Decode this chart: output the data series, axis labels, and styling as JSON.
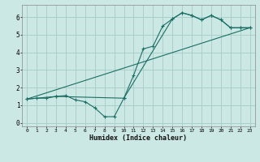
{
  "xlabel": "Humidex (Indice chaleur)",
  "bg_color": "#cce8e4",
  "grid_color": "#aad0cc",
  "line_color": "#1a6e64",
  "xlim": [
    -0.5,
    23.5
  ],
  "ylim": [
    -0.2,
    6.7
  ],
  "xticks": [
    0,
    1,
    2,
    3,
    4,
    5,
    6,
    7,
    8,
    9,
    10,
    11,
    12,
    13,
    14,
    15,
    16,
    17,
    18,
    19,
    20,
    21,
    22,
    23
  ],
  "yticks": [
    0,
    1,
    2,
    3,
    4,
    5,
    6
  ],
  "line1_x": [
    0,
    1,
    2,
    3,
    4,
    5,
    6,
    7,
    8,
    9,
    10,
    11,
    12,
    13,
    14,
    15,
    16,
    17,
    18,
    19,
    20,
    21,
    22,
    23
  ],
  "line1_y": [
    1.35,
    1.4,
    1.4,
    1.5,
    1.55,
    1.3,
    1.2,
    0.85,
    0.35,
    0.35,
    1.4,
    2.7,
    4.2,
    4.35,
    5.5,
    5.9,
    6.25,
    6.1,
    5.85,
    6.1,
    5.85,
    5.4,
    5.4,
    5.4
  ],
  "line2_x": [
    0,
    3,
    10,
    15,
    16,
    17,
    18,
    19,
    20,
    21,
    22,
    23
  ],
  "line2_y": [
    1.35,
    1.5,
    1.4,
    5.9,
    6.25,
    6.1,
    5.85,
    6.1,
    5.85,
    5.4,
    5.4,
    5.4
  ],
  "line3_x": [
    0,
    23
  ],
  "line3_y": [
    1.35,
    5.4
  ]
}
